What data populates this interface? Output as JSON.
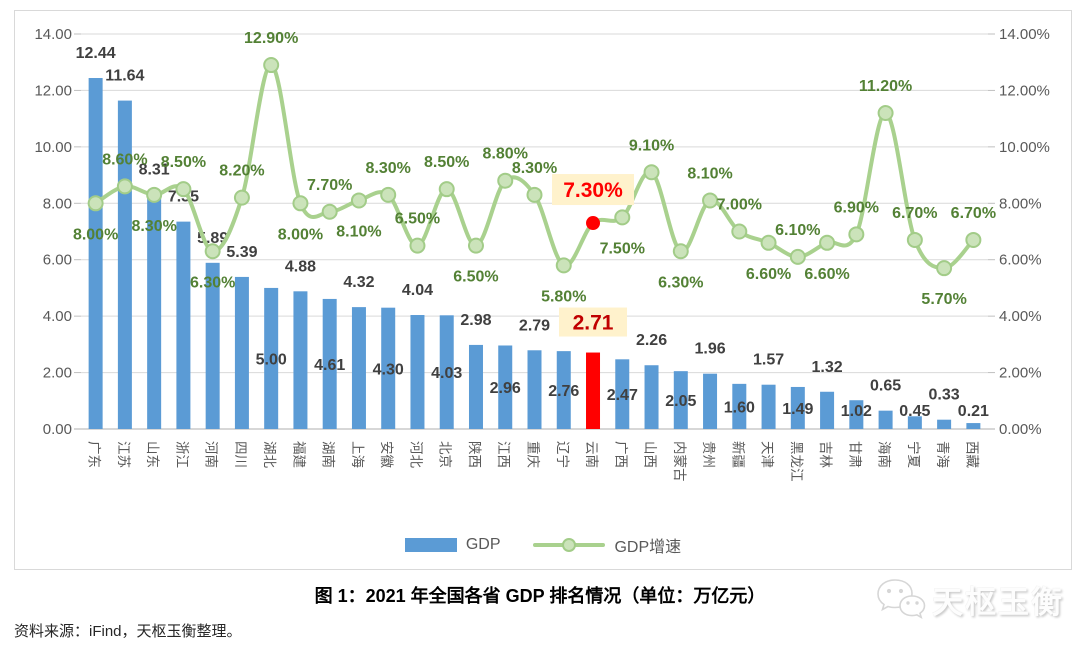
{
  "caption": "图 1：2021 年全国各省 GDP 排名情况（单位：万亿元）",
  "source": "资料来源：iFind，天枢玉衡整理。",
  "watermark": {
    "text": "天枢玉衡",
    "icon": "wechat-bubbles-icon"
  },
  "legend": {
    "gdp_label": "GDP",
    "growth_label": "GDP增速"
  },
  "chart_data": {
    "type": "bar",
    "subtype": "combo-bar-line",
    "title": "2021 年全国各省 GDP 排名情况",
    "unit": "万亿元",
    "categories": [
      "广东",
      "江苏",
      "山东",
      "浙江",
      "河南",
      "四川",
      "湖北",
      "福建",
      "湖南",
      "上海",
      "安徽",
      "河北",
      "北京",
      "陕西",
      "江西",
      "重庆",
      "辽宁",
      "云南",
      "广西",
      "山西",
      "内蒙古",
      "贵州",
      "新疆",
      "天津",
      "黑龙江",
      "吉林",
      "甘肃",
      "海南",
      "宁夏",
      "青海",
      "西藏"
    ],
    "series": [
      {
        "name": "GDP",
        "type": "bar",
        "values": [
          12.44,
          11.64,
          8.31,
          7.35,
          5.89,
          5.39,
          5.0,
          4.88,
          4.61,
          4.32,
          4.3,
          4.04,
          4.03,
          2.98,
          2.96,
          2.79,
          2.76,
          2.71,
          2.47,
          2.26,
          2.05,
          1.96,
          1.6,
          1.57,
          1.49,
          1.32,
          1.02,
          0.65,
          0.45,
          0.33,
          0.21
        ],
        "labels": [
          "12.44",
          "11.64",
          "8.31",
          "7.35",
          "5.89",
          "5.39",
          "5.00",
          "4.88",
          "4.61",
          "4.32",
          "4.30",
          "4.04",
          "4.03",
          "2.98",
          "2.96",
          "2.79",
          "2.76",
          "2.71",
          "2.47",
          "2.26",
          "2.05",
          "1.96",
          "1.60",
          "1.57",
          "1.49",
          "1.32",
          "1.02",
          "0.65",
          "0.45",
          "0.33",
          "0.21"
        ]
      },
      {
        "name": "GDP增速",
        "type": "line",
        "values": [
          8.0,
          8.6,
          8.3,
          8.5,
          6.3,
          8.2,
          12.9,
          8.0,
          7.7,
          8.1,
          8.3,
          6.5,
          8.5,
          6.5,
          8.8,
          8.3,
          5.8,
          7.3,
          7.5,
          9.1,
          6.3,
          8.1,
          7.0,
          6.6,
          6.1,
          6.6,
          6.9,
          11.2,
          6.7,
          5.7,
          6.7
        ],
        "labels": [
          "8.00%",
          "8.60%",
          "8.30%",
          "8.50%",
          "6.30%",
          "8.20%",
          "12.90%",
          "8.00%",
          "7.70%",
          "8.10%",
          "8.30%",
          "6.50%",
          "8.50%",
          "6.50%",
          "8.80%",
          "8.30%",
          "5.80%",
          "7.30%",
          "7.50%",
          "9.10%",
          "6.30%",
          "8.10%",
          "7.00%",
          "6.60%",
          "6.10%",
          "6.60%",
          "6.90%",
          "11.20%",
          "6.70%",
          "5.70%",
          "6.70%"
        ]
      }
    ],
    "bar_label_pos": [
      "out",
      "out",
      "out",
      "out",
      "out",
      "out",
      "in",
      "out",
      "in",
      "out",
      "in",
      "out",
      "in",
      "out",
      "in",
      "out",
      "in",
      "box",
      "in",
      "out",
      "in",
      "out",
      "in",
      "out",
      "in",
      "out",
      "in",
      "out",
      "in",
      "out",
      "in"
    ],
    "line_label_pos": [
      "below",
      "above",
      "below",
      "above",
      "below",
      "above",
      "above",
      "below",
      "above",
      "below",
      "above",
      "above",
      "above",
      "below",
      "above",
      "above",
      "below",
      "box",
      "below",
      "above",
      "below",
      "above",
      "above",
      "below",
      "above",
      "below",
      "above",
      "above",
      "above",
      "below",
      "above"
    ],
    "highlight_index": 17,
    "highlight": {
      "category": "云南",
      "gdp_label": "2.71",
      "growth_label": "7.30%"
    },
    "axes": {
      "left_min": 0,
      "left_max": 14,
      "left_ticks": [
        "0.00",
        "2.00",
        "4.00",
        "6.00",
        "8.00",
        "10.00",
        "12.00",
        "14.00"
      ],
      "right_min": 0,
      "right_max": 14,
      "right_ticks": [
        "0.00%",
        "2.00%",
        "4.00%",
        "6.00%",
        "8.00%",
        "10.00%",
        "12.00%",
        "14.00%"
      ],
      "grid": true,
      "legend_position": "bottom"
    },
    "colors": {
      "bar": "#5B9BD5",
      "bar_highlight": "#FF0000",
      "line": "#A9D18E",
      "marker_fill": "#CBE3BA",
      "marker_stroke": "#A2CC88",
      "marker_highlight": "#FF0000",
      "line_label": "#538135",
      "bar_label": "#404040",
      "axis_label": "#595959",
      "gridline": "#D9D9D9",
      "axis_line": "#BFBFBF",
      "highlight_box_bg": "#FFF2CC",
      "gdp_highlight_text": "#C00000",
      "growth_highlight_text": "#FF0000"
    }
  }
}
